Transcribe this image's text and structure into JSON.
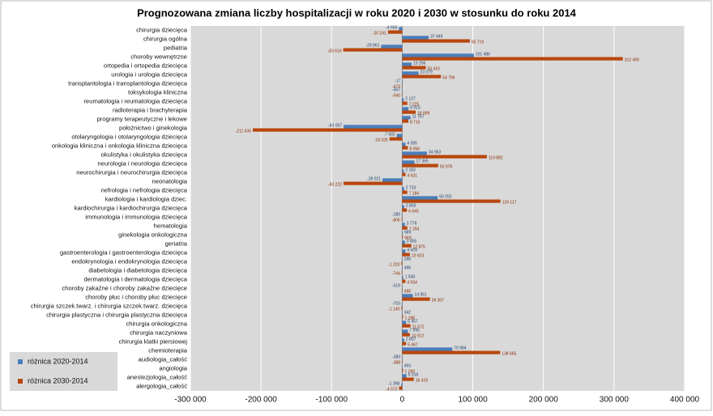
{
  "chart_data": {
    "type": "hbar",
    "title": "Prognozowana zmiana liczby hospitalizacji w roku 2020 i 2030 w stosunku do roku 2014",
    "categories": [
      "chirurgia dziecięca",
      "chirurgia ogólna",
      "pediatria",
      "choroby wewnętrzne",
      "ortopedia i ortopedia dziecięca",
      "urologia i urologia dziecięca",
      "transplantologia i transplantologia dziecięca",
      "toksykologia kliniczna",
      "reumatologia i reumatologia dziecięca",
      "radioterapia i brachyterapia",
      "programy terapeutyczne i lekowe",
      "położnictwo i ginekologia",
      "otolaryngologia i otolaryngologia dziecięca",
      "onkologia kliniczna i onkologia kliniczna dziecięca",
      "okulistyka i okulistyka dziecięca",
      "neurologia i neurologia dziecięca",
      "neurochirurgia i neurochirurgia dziecięca",
      "neonatologia",
      "nefrologia i nefrologia dziecięca",
      "kardiologia i kardiologia dziec.",
      "kardiochirurgia i kardiochirurgia dziecięca",
      "immunologia i immunologia dziecięca",
      "hematologia",
      "ginekologia onkologiczna",
      "geriatria",
      "gastroenterologia i gastroenterologia dziecięca",
      "endokrynologia i endokrynologia dziecięca",
      "diabetologia i diabetologia dziecięca",
      "dermatologia i dermatologia dziecięca",
      "choroby zakaźne i choroby zakaźne dziecięce",
      "choroby płuc i choroby płuc dziecięce",
      "chirurgia szczek.twarz. i chirurgia szczek.twarz. dziecięca",
      "chirurgia plastyczna i chirurgia plastyczna dziecięca",
      "chirurgia onkologiczna",
      "chirurgia naczyniowa",
      "chirurgia klatki piersiowej",
      "chemioterapia",
      "audiologia_całość",
      "angiologia",
      "anestezjologia_całość",
      "alergologia_całość"
    ],
    "series": [
      {
        "name": "różnica 2020-2014",
        "color": "#4a7ebb",
        "values": [
          -4666,
          37449,
          -29861,
          101486,
          13256,
          23079,
          -17,
          -567,
          2127,
          8915,
          11767,
          -83057,
          -7682,
          4595,
          34953,
          17365,
          2183,
          -28021,
          2723,
          50252,
          2805,
          -280,
          3778,
          689,
          3855,
          4509,
          288,
          495,
          1540,
          -519,
          14951,
          -703,
          342,
          5457,
          7995,
          2807,
          70984,
          -383,
          493,
          6018,
          -1398
        ],
        "value_labels": [
          "-4 666",
          "37 449",
          "-29 861",
          "101 486",
          "13 256",
          "23 079",
          "-17",
          "-567",
          "2 127",
          "8 915",
          "11 767",
          "-83 057",
          "-7 682",
          "4 595",
          "34 953",
          "17 365",
          "2 183",
          "-28 021",
          "2 723",
          "50 252",
          "2 805",
          "-280",
          "3 778",
          "689",
          "3 855",
          "4 509",
          "288",
          "495",
          "1 540",
          "-519",
          "14 951",
          "-703",
          "342",
          "5 457",
          "7 995",
          "2 807",
          "70 984",
          "-383",
          "493",
          "6 018",
          "-1 398"
        ]
      },
      {
        "name": "różnica 2030-2014",
        "color": "#b8470d",
        "values": [
          -20241,
          95719,
          -83616,
          312499,
          33410,
          54796,
          -479,
          -540,
          7225,
          18999,
          8715,
          -211636,
          -18026,
          8058,
          119882,
          50978,
          4631,
          -83222,
          7184,
          139117,
          6645,
          -806,
          7294,
          969,
          12875,
          10923,
          -1220,
          -744,
          4554,
          495,
          39307,
          -1140,
          1188,
          11672,
          10912,
          5467,
          138665,
          -388,
          1269,
          16419,
          -4572
        ],
        "value_labels": [
          "-20 241",
          "95 719",
          "-83 616",
          "312 499",
          "33 410",
          "54 796",
          "-479",
          "-540",
          "7 225",
          "18 999",
          "8 715",
          "-211 636",
          "-18 026",
          "8 058",
          "119 882",
          "50 978",
          "4 631",
          "-83 222",
          "7 184",
          "139 117",
          "6 645",
          "-806",
          "7 294",
          "969",
          "12 875",
          "10 923",
          "-1 220",
          "-744",
          "4 554",
          "495",
          "39 307",
          "-1 140",
          "1 188",
          "11 672",
          "10 912",
          "5 467",
          "138 665",
          "-388",
          "1 269",
          "16 419",
          "-4 572"
        ]
      }
    ],
    "xlim": [
      -300000,
      400000
    ],
    "xticks": [
      {
        "value": -300000,
        "label": "-300 000"
      },
      {
        "value": -200000,
        "label": "-200 000"
      },
      {
        "value": -100000,
        "label": "-100 000"
      },
      0,
      {
        "value": 100000,
        "label": "100 000"
      },
      {
        "value": 200000,
        "label": "200 000"
      },
      {
        "value": 300000,
        "label": "300 000"
      },
      {
        "value": 400000,
        "label": "400 000"
      }
    ],
    "grid": true,
    "legend": "bottom-left"
  }
}
